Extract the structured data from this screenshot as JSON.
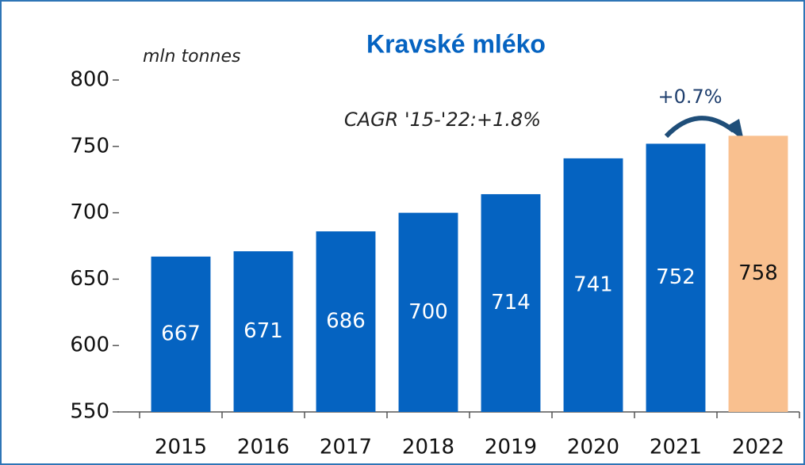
{
  "chart_data": {
    "type": "bar",
    "title": "Kravské mléko",
    "y_label": "mln tonnes",
    "annotations": [
      "CAGR '15-'22:+1.8%",
      "+0.7%"
    ],
    "categories": [
      "2015",
      "2016",
      "2017",
      "2018",
      "2019",
      "2020",
      "2021",
      "2022"
    ],
    "values": [
      667,
      671,
      686,
      700,
      714,
      741,
      752,
      758
    ],
    "colors": [
      "#0563c1",
      "#0563c1",
      "#0563c1",
      "#0563c1",
      "#0563c1",
      "#0563c1",
      "#0563c1",
      "#f9c08f"
    ],
    "ylim": [
      550,
      800
    ],
    "yticks": [
      550,
      600,
      650,
      700,
      750,
      800
    ],
    "grid": false
  }
}
